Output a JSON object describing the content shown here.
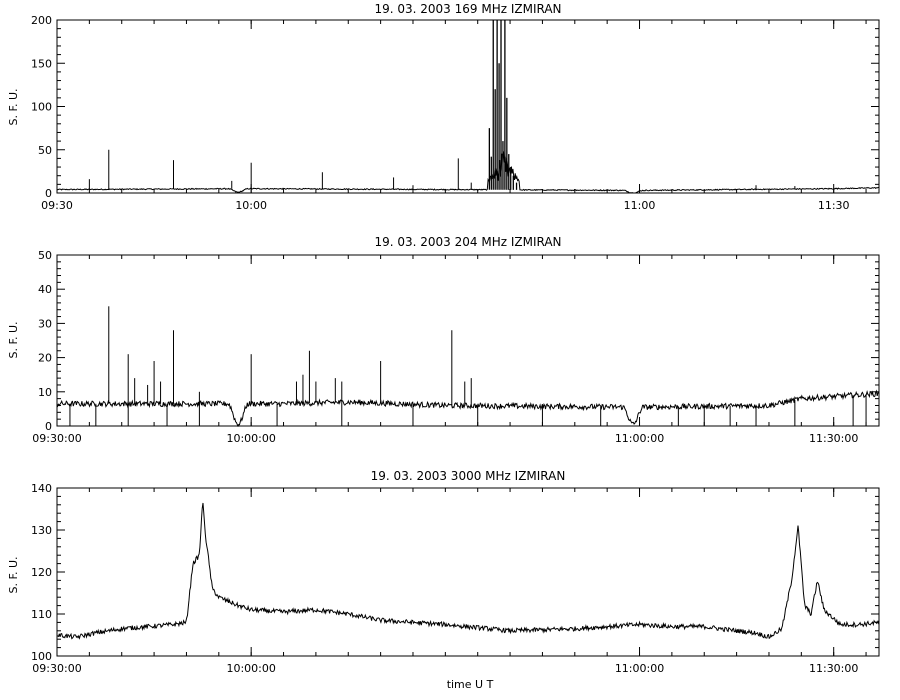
{
  "chart_data": [
    {
      "type": "line",
      "title": "19.  03.  2003    169 MHz    IZMIRAN",
      "ylabel": "S. F. U.",
      "xlabel": "",
      "xlim": [
        "09:30",
        "11:37"
      ],
      "ylim": [
        0,
        200
      ],
      "xticks": [
        {
          "t": "09:30",
          "label": "09:30"
        },
        {
          "t": "10:00",
          "label": "10:00"
        },
        {
          "t": "11:00",
          "label": "11:00"
        },
        {
          "t": "11:30",
          "label": "11:30"
        }
      ],
      "yticks": [
        0,
        50,
        100,
        150,
        200
      ],
      "baseline": [
        [
          "09:30",
          4
        ],
        [
          "10:00",
          5
        ],
        [
          "10:30",
          4
        ],
        [
          "11:00",
          3
        ],
        [
          "11:30",
          5
        ],
        [
          "11:37",
          6
        ]
      ],
      "dips": [
        {
          "t": "09:58",
          "depth": 4
        },
        {
          "t": "10:59",
          "depth": 3
        }
      ],
      "spikes": [
        {
          "t": "09:38",
          "v": 50
        },
        {
          "t": "09:35",
          "v": 16
        },
        {
          "t": "09:48",
          "v": 38
        },
        {
          "t": "09:57",
          "v": 14
        },
        {
          "t": "10:00",
          "v": 35
        },
        {
          "t": "10:11",
          "v": 24
        },
        {
          "t": "10:22",
          "v": 18
        },
        {
          "t": "10:25",
          "v": 9
        },
        {
          "t": "10:32",
          "v": 40
        },
        {
          "t": "10:34",
          "v": 12
        },
        {
          "t": "11:18",
          "v": 9
        },
        {
          "t": "11:24",
          "v": 8
        }
      ],
      "bursts": [
        {
          "t": "10:36.8",
          "v": 75
        },
        {
          "t": "10:37.1",
          "v": 42
        },
        {
          "t": "10:37.4",
          "v": 200
        },
        {
          "t": "10:37.7",
          "v": 120
        },
        {
          "t": "10:38.0",
          "v": 200
        },
        {
          "t": "10:38.3",
          "v": 150
        },
        {
          "t": "10:38.6",
          "v": 200
        },
        {
          "t": "10:38.9",
          "v": 60
        },
        {
          "t": "10:39.2",
          "v": 200
        },
        {
          "t": "10:39.5",
          "v": 110
        },
        {
          "t": "10:39.8",
          "v": 45
        },
        {
          "t": "10:40.1",
          "v": 30
        },
        {
          "t": "10:40.5",
          "v": 20
        },
        {
          "t": "10:41.0",
          "v": 12
        }
      ],
      "burst_window": [
        "10:36.5",
        "10:41.5"
      ]
    },
    {
      "type": "line",
      "title": "19.  03.  2003    204 MHz    IZMIRAN",
      "ylabel": "S. F. U.",
      "xlabel": "",
      "xlim": [
        "09:30",
        "11:37"
      ],
      "ylim": [
        0,
        50
      ],
      "xticks": [
        {
          "t": "09:30",
          "label": "09:30:00"
        },
        {
          "t": "10:00",
          "label": "10:00:00"
        },
        {
          "t": "11:00",
          "label": "11:00:00"
        },
        {
          "t": "11:30",
          "label": "11:30:00"
        }
      ],
      "yticks": [
        0,
        10,
        20,
        30,
        40,
        50
      ],
      "baseline": [
        [
          "09:30",
          6.5
        ],
        [
          "09:50",
          6.5
        ],
        [
          "10:05",
          6.5
        ],
        [
          "10:15",
          7
        ],
        [
          "10:30",
          6
        ],
        [
          "11:00",
          5.5
        ],
        [
          "11:20",
          6
        ],
        [
          "11:25",
          8
        ],
        [
          "11:37",
          9.5
        ]
      ],
      "dips": [
        {
          "t": "09:58",
          "depth": 6
        },
        {
          "t": "10:59",
          "depth": 5
        }
      ],
      "spikes": [
        {
          "t": "09:38",
          "v": 35
        },
        {
          "t": "09:41",
          "v": 21
        },
        {
          "t": "09:42",
          "v": 14
        },
        {
          "t": "09:44",
          "v": 12
        },
        {
          "t": "09:45",
          "v": 19
        },
        {
          "t": "09:46",
          "v": 13
        },
        {
          "t": "09:48",
          "v": 28
        },
        {
          "t": "09:52",
          "v": 10
        },
        {
          "t": "10:00",
          "v": 21
        },
        {
          "t": "10:07",
          "v": 13
        },
        {
          "t": "10:08",
          "v": 15
        },
        {
          "t": "10:09",
          "v": 22
        },
        {
          "t": "10:10",
          "v": 13
        },
        {
          "t": "10:13",
          "v": 14
        },
        {
          "t": "10:14",
          "v": 13
        },
        {
          "t": "10:20",
          "v": 19
        },
        {
          "t": "10:31",
          "v": 28
        },
        {
          "t": "10:33",
          "v": 13
        },
        {
          "t": "10:34",
          "v": 14
        }
      ],
      "downspikes": [
        "09:32",
        "09:36",
        "09:41",
        "09:47",
        "09:52",
        "10:04",
        "10:14",
        "10:25",
        "10:35",
        "10:45",
        "10:54",
        "11:06",
        "11:10",
        "11:14",
        "11:18",
        "11:24",
        "11:33",
        "11:35"
      ]
    },
    {
      "type": "line",
      "title": "19.  03.  2003     3000 MHz    IZMIRAN",
      "ylabel": "S. F. U.",
      "xlabel": "time  U T",
      "xlim": [
        "09:30",
        "11:37"
      ],
      "ylim": [
        100,
        140
      ],
      "xticks": [
        {
          "t": "09:30",
          "label": "09:30:00"
        },
        {
          "t": "10:00",
          "label": "10:00:00"
        },
        {
          "t": "11:00",
          "label": "11:00:00"
        },
        {
          "t": "11:30",
          "label": "11:30:00"
        }
      ],
      "yticks": [
        100,
        110,
        120,
        130,
        140
      ],
      "points": [
        [
          "09:30",
          105
        ],
        [
          "09:33",
          104.5
        ],
        [
          "09:36",
          105.5
        ],
        [
          "09:40",
          106.5
        ],
        [
          "09:44",
          107
        ],
        [
          "09:48",
          107.5
        ],
        [
          "09:50",
          108
        ],
        [
          "09:51",
          122
        ],
        [
          "09:52",
          124
        ],
        [
          "09:52.5",
          137
        ],
        [
          "09:53",
          128
        ],
        [
          "09:54",
          116
        ],
        [
          "09:55",
          114
        ],
        [
          "09:58",
          112
        ],
        [
          "10:00",
          111
        ],
        [
          "10:05",
          110.5
        ],
        [
          "10:10",
          111
        ],
        [
          "10:15",
          110
        ],
        [
          "10:20",
          108.5
        ],
        [
          "10:30",
          107.5
        ],
        [
          "10:40",
          106
        ],
        [
          "10:50",
          106.5
        ],
        [
          "11:00",
          107.5
        ],
        [
          "11:05",
          107
        ],
        [
          "11:10",
          107
        ],
        [
          "11:15",
          106
        ],
        [
          "11:18",
          105.5
        ],
        [
          "11:20",
          104.5
        ],
        [
          "11:22",
          106.5
        ],
        [
          "11:23.5",
          118
        ],
        [
          "11:24.5",
          131
        ],
        [
          "11:25.5",
          112
        ],
        [
          "11:26.5",
          110
        ],
        [
          "11:27.5",
          118
        ],
        [
          "11:28.5",
          111
        ],
        [
          "11:31",
          107.5
        ],
        [
          "11:34",
          107.5
        ],
        [
          "11:37",
          108
        ]
      ]
    }
  ]
}
